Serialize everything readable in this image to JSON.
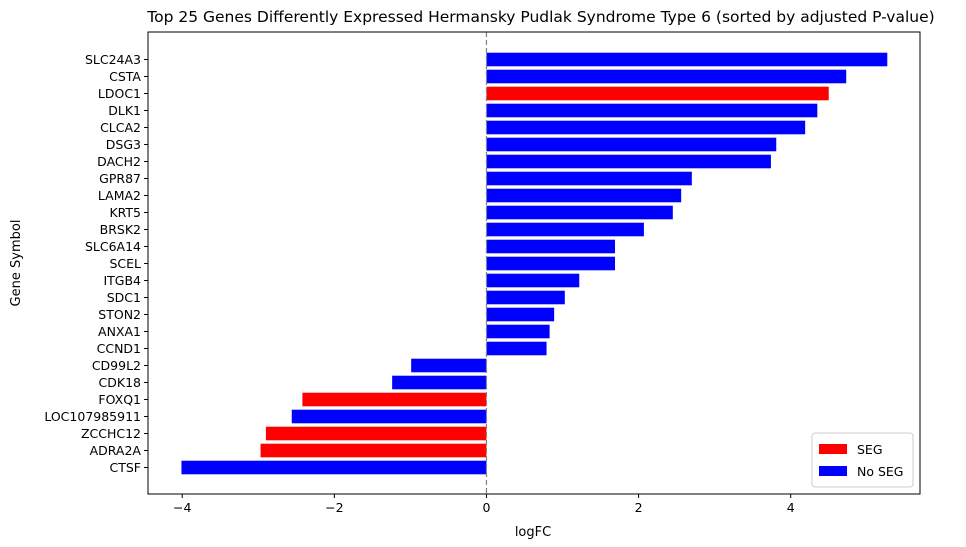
{
  "chart_data": {
    "type": "bar",
    "orientation": "horizontal",
    "title": "Top 25 Genes Differently Expressed Hermansky Pudlak Syndrome Type 6 (sorted by adjusted P-value)",
    "xlabel": "logFC",
    "ylabel": "Gene Symbol",
    "xlim": [
      -4.45,
      5.7
    ],
    "xticks": [
      -4,
      -2,
      0,
      2,
      4
    ],
    "xtick_labels": [
      "−4",
      "−2",
      "0",
      "2",
      "4"
    ],
    "zero_line": "dashed gray",
    "grid": false,
    "legend_position": "lower-right",
    "legend": [
      {
        "label": "SEG",
        "color": "#ff0000"
      },
      {
        "label": "No SEG",
        "color": "#0000ff"
      }
    ],
    "bars": [
      {
        "gene": "SLC24A3",
        "logFC": 5.27,
        "seg": false
      },
      {
        "gene": "CSTA",
        "logFC": 4.73,
        "seg": false
      },
      {
        "gene": "LDOC1",
        "logFC": 4.5,
        "seg": true
      },
      {
        "gene": "DLK1",
        "logFC": 4.35,
        "seg": false
      },
      {
        "gene": "CLCA2",
        "logFC": 4.19,
        "seg": false
      },
      {
        "gene": "DSG3",
        "logFC": 3.81,
        "seg": false
      },
      {
        "gene": "DACH2",
        "logFC": 3.74,
        "seg": false
      },
      {
        "gene": "GPR87",
        "logFC": 2.7,
        "seg": false
      },
      {
        "gene": "LAMA2",
        "logFC": 2.56,
        "seg": false
      },
      {
        "gene": "KRT5",
        "logFC": 2.45,
        "seg": false
      },
      {
        "gene": "BRSK2",
        "logFC": 2.07,
        "seg": false
      },
      {
        "gene": "SLC6A14",
        "logFC": 1.69,
        "seg": false
      },
      {
        "gene": "SCEL",
        "logFC": 1.69,
        "seg": false
      },
      {
        "gene": "ITGB4",
        "logFC": 1.22,
        "seg": false
      },
      {
        "gene": "SDC1",
        "logFC": 1.03,
        "seg": false
      },
      {
        "gene": "STON2",
        "logFC": 0.89,
        "seg": false
      },
      {
        "gene": "ANXA1",
        "logFC": 0.83,
        "seg": false
      },
      {
        "gene": "CCND1",
        "logFC": 0.79,
        "seg": false
      },
      {
        "gene": "CD99L2",
        "logFC": -0.99,
        "seg": false
      },
      {
        "gene": "CDK18",
        "logFC": -1.24,
        "seg": false
      },
      {
        "gene": "FOXQ1",
        "logFC": -2.42,
        "seg": true
      },
      {
        "gene": "LOC107985911",
        "logFC": -2.56,
        "seg": false
      },
      {
        "gene": "ZCCHC12",
        "logFC": -2.9,
        "seg": true
      },
      {
        "gene": "ADRA2A",
        "logFC": -2.97,
        "seg": true
      },
      {
        "gene": "CTSF",
        "logFC": -4.01,
        "seg": false
      }
    ]
  }
}
